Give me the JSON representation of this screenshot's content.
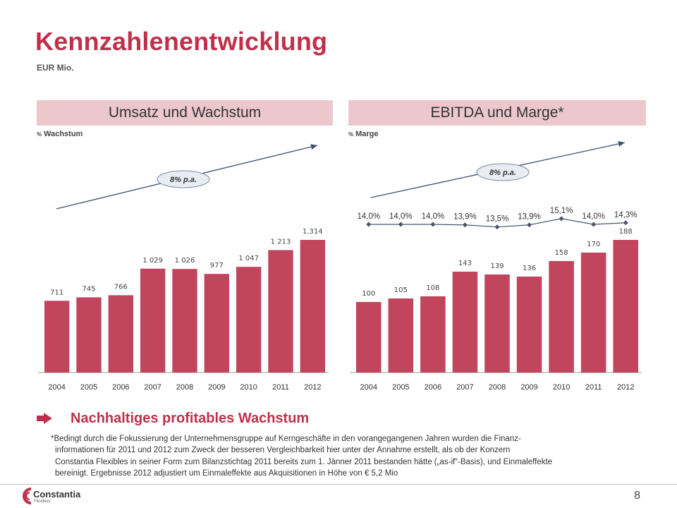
{
  "header": {
    "title": "Kennzahlenentwicklung",
    "subtitle": "EUR Mio."
  },
  "panels": {
    "left": {
      "title": "Umsatz und Wachstum",
      "note_pct": "%",
      "note": "Wachstum"
    },
    "right": {
      "title": "EBITDA und Marge*",
      "note_pct": "%",
      "note": "Marge"
    }
  },
  "chart_data": [
    {
      "type": "bar",
      "title": "Umsatz und Wachstum",
      "categories": [
        "2004",
        "2005",
        "2006",
        "2007",
        "2008",
        "2009",
        "2010",
        "2011",
        "2012"
      ],
      "values": [
        711,
        745,
        766,
        1029,
        1026,
        977,
        1047,
        1213,
        1314
      ],
      "value_labels": [
        "711",
        "745",
        "766",
        "1 029",
        "1 026",
        "977",
        "1 047",
        "1 213",
        "1.314"
      ],
      "trend_label": "8% p.a.",
      "bar_color": "#c0455d"
    },
    {
      "type": "bar",
      "title": "EBITDA und Marge*",
      "categories": [
        "2004",
        "2005",
        "2006",
        "2007",
        "2008",
        "2009",
        "2010",
        "2011",
        "2012"
      ],
      "values": [
        100,
        105,
        108,
        143,
        139,
        136,
        158,
        170,
        188
      ],
      "value_labels": [
        "100",
        "105",
        "108",
        "143",
        "139",
        "136",
        "158",
        "170",
        "188"
      ],
      "trend_label": "8% p.a.",
      "margin_values": [
        14.0,
        14.0,
        14.0,
        13.9,
        13.5,
        13.9,
        15.1,
        14.0,
        14.3
      ],
      "margin_labels": [
        "14,0%",
        "14,0%",
        "14,0%",
        "13,9%",
        "13,5%",
        "13,9%",
        "15,1%",
        "14,0%",
        "14,3%"
      ],
      "bar_color": "#c0455d"
    }
  ],
  "message": "Nachhaltiges profitables Wachstum",
  "footnote": [
    "*Bedingt durch die Fokussierung der Unternehmensgruppe auf Kerngeschäfte in den vorangegangenen Jahren wurden die Finanz-",
    "informationen  für 2011 und 2012 zum Zweck der besseren Vergleichbarkeit hier unter der Annahme erstellt, als ob der Konzern",
    "Constantia Flexibles in seiner Form zum Bilanzstichtag 2011 bereits zum 1. Jänner 2011 bestanden hätte („as-if“-Basis), und Einmaleffekte",
    "bereinigt. Ergebnisse 2012 adjustiert um Einmaleffekte aus Akquisitionen in Höhe von € 5,2 Mio"
  ],
  "logo": {
    "name": "Constantia",
    "sub": "Flexibles"
  },
  "page_number": "8",
  "colors": {
    "accent": "#c0304a",
    "bar": "#c0455d",
    "header_bg": "#ecc8cc",
    "trend": "#3e5070"
  }
}
